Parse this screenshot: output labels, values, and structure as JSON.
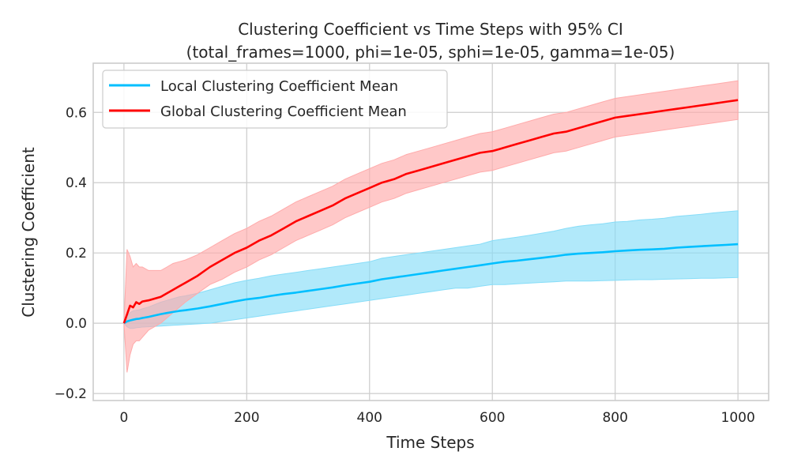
{
  "chart_data": {
    "type": "line",
    "title": "Clustering Coefficient vs Time Steps with 95% CI",
    "subtitle": "(total_frames=1000, phi=1e-05, sphi=1e-05, gamma=1e-05)",
    "xlabel": "Time Steps",
    "ylabel": "Clustering Coefficient",
    "xlim": [
      -50,
      1050
    ],
    "ylim": [
      -0.22,
      0.74
    ],
    "xticks": [
      0,
      200,
      400,
      600,
      800,
      1000
    ],
    "yticks": [
      -0.2,
      0.0,
      0.2,
      0.4,
      0.6
    ],
    "xtick_labels": [
      "0",
      "200",
      "400",
      "600",
      "800",
      "1000"
    ],
    "ytick_labels": [
      "−0.2",
      "0.0",
      "0.2",
      "0.4",
      "0.6"
    ],
    "grid": true,
    "legend_position": "top-left",
    "x": [
      0,
      5,
      10,
      15,
      20,
      25,
      30,
      40,
      50,
      60,
      70,
      80,
      90,
      100,
      120,
      140,
      160,
      180,
      200,
      220,
      240,
      260,
      280,
      300,
      320,
      340,
      360,
      380,
      400,
      420,
      440,
      460,
      480,
      500,
      520,
      540,
      560,
      580,
      600,
      620,
      640,
      660,
      680,
      700,
      720,
      740,
      760,
      780,
      800,
      820,
      840,
      860,
      880,
      900,
      920,
      940,
      960,
      980,
      1000
    ],
    "series": [
      {
        "name": "Local Clustering Coefficient Mean",
        "color": "#00bfff",
        "band_color": "#87ddf8",
        "mean": [
          0.0,
          0.005,
          0.008,
          0.01,
          0.012,
          0.013,
          0.015,
          0.018,
          0.022,
          0.026,
          0.029,
          0.032,
          0.035,
          0.037,
          0.042,
          0.048,
          0.055,
          0.062,
          0.068,
          0.072,
          0.078,
          0.083,
          0.087,
          0.092,
          0.097,
          0.102,
          0.108,
          0.113,
          0.118,
          0.125,
          0.13,
          0.135,
          0.14,
          0.145,
          0.15,
          0.155,
          0.16,
          0.165,
          0.17,
          0.175,
          0.178,
          0.182,
          0.186,
          0.19,
          0.195,
          0.198,
          0.2,
          0.202,
          0.205,
          0.207,
          0.209,
          0.21,
          0.212,
          0.215,
          0.217,
          0.219,
          0.221,
          0.223,
          0.225
        ],
        "lower": [
          0.0,
          -0.01,
          -0.015,
          -0.015,
          -0.013,
          -0.012,
          -0.011,
          -0.01,
          -0.009,
          -0.008,
          -0.007,
          -0.006,
          -0.005,
          -0.004,
          -0.002,
          0.0,
          0.005,
          0.01,
          0.015,
          0.02,
          0.025,
          0.03,
          0.035,
          0.04,
          0.045,
          0.05,
          0.055,
          0.06,
          0.065,
          0.07,
          0.075,
          0.08,
          0.085,
          0.09,
          0.095,
          0.1,
          0.1,
          0.105,
          0.11,
          0.11,
          0.112,
          0.114,
          0.116,
          0.118,
          0.12,
          0.12,
          0.12,
          0.121,
          0.122,
          0.123,
          0.124,
          0.124,
          0.125,
          0.126,
          0.127,
          0.128,
          0.128,
          0.129,
          0.13
        ],
        "upper": [
          0.0,
          0.02,
          0.03,
          0.035,
          0.037,
          0.038,
          0.041,
          0.046,
          0.053,
          0.06,
          0.065,
          0.07,
          0.075,
          0.078,
          0.085,
          0.095,
          0.105,
          0.115,
          0.122,
          0.128,
          0.135,
          0.14,
          0.145,
          0.15,
          0.155,
          0.16,
          0.165,
          0.17,
          0.175,
          0.185,
          0.19,
          0.195,
          0.2,
          0.205,
          0.21,
          0.215,
          0.22,
          0.225,
          0.235,
          0.24,
          0.245,
          0.25,
          0.256,
          0.262,
          0.27,
          0.276,
          0.28,
          0.283,
          0.288,
          0.29,
          0.294,
          0.296,
          0.299,
          0.304,
          0.307,
          0.31,
          0.314,
          0.317,
          0.32
        ]
      },
      {
        "name": "Global Clustering Coefficient Mean",
        "color": "#ff0000",
        "band_color": "#ffaaaa",
        "mean": [
          0.0,
          0.025,
          0.05,
          0.045,
          0.06,
          0.055,
          0.062,
          0.065,
          0.07,
          0.075,
          0.085,
          0.095,
          0.105,
          0.115,
          0.135,
          0.16,
          0.18,
          0.2,
          0.215,
          0.235,
          0.25,
          0.27,
          0.29,
          0.305,
          0.32,
          0.335,
          0.355,
          0.37,
          0.385,
          0.4,
          0.41,
          0.425,
          0.435,
          0.445,
          0.455,
          0.465,
          0.475,
          0.485,
          0.49,
          0.5,
          0.51,
          0.52,
          0.53,
          0.54,
          0.545,
          0.555,
          0.565,
          0.575,
          0.585,
          0.59,
          0.595,
          0.6,
          0.605,
          0.61,
          0.615,
          0.62,
          0.625,
          0.63,
          0.635
        ],
        "lower": [
          0.0,
          -0.14,
          -0.09,
          -0.06,
          -0.05,
          -0.05,
          -0.04,
          -0.02,
          -0.01,
          0.0,
          0.015,
          0.03,
          0.045,
          0.06,
          0.085,
          0.11,
          0.125,
          0.145,
          0.16,
          0.18,
          0.195,
          0.215,
          0.235,
          0.25,
          0.265,
          0.28,
          0.3,
          0.315,
          0.33,
          0.345,
          0.355,
          0.37,
          0.38,
          0.39,
          0.4,
          0.41,
          0.42,
          0.43,
          0.435,
          0.445,
          0.455,
          0.465,
          0.475,
          0.485,
          0.49,
          0.5,
          0.51,
          0.52,
          0.53,
          0.535,
          0.54,
          0.545,
          0.55,
          0.555,
          0.56,
          0.565,
          0.57,
          0.575,
          0.58
        ],
        "upper": [
          0.0,
          0.21,
          0.19,
          0.16,
          0.17,
          0.16,
          0.16,
          0.15,
          0.15,
          0.15,
          0.16,
          0.17,
          0.175,
          0.18,
          0.195,
          0.215,
          0.235,
          0.255,
          0.27,
          0.29,
          0.305,
          0.325,
          0.345,
          0.36,
          0.375,
          0.39,
          0.41,
          0.425,
          0.44,
          0.455,
          0.465,
          0.48,
          0.49,
          0.5,
          0.51,
          0.52,
          0.53,
          0.54,
          0.545,
          0.555,
          0.565,
          0.575,
          0.585,
          0.595,
          0.6,
          0.61,
          0.62,
          0.63,
          0.64,
          0.645,
          0.65,
          0.655,
          0.66,
          0.665,
          0.67,
          0.675,
          0.68,
          0.685,
          0.69
        ]
      }
    ]
  }
}
